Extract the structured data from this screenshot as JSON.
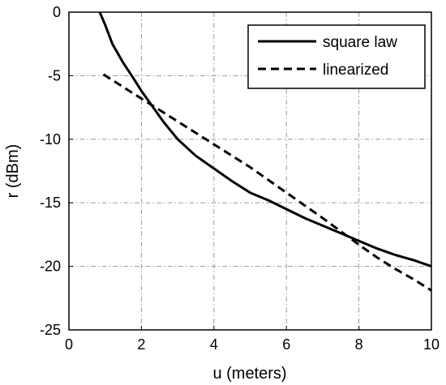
{
  "chart_data": {
    "type": "line",
    "xlabel": "u (meters)",
    "ylabel": "r (dBm)",
    "xlim": [
      0,
      10
    ],
    "ylim": [
      -25,
      0
    ],
    "xticks": [
      0,
      2,
      4,
      6,
      8,
      10
    ],
    "yticks": [
      0,
      -5,
      -10,
      -15,
      -20,
      -25
    ],
    "grid": true,
    "legend_position": "top-right",
    "series": [
      {
        "name": "square law",
        "style": "solid",
        "color": "#000000",
        "x": [
          0.85,
          1.0,
          1.2,
          1.5,
          1.8,
          2.0,
          2.3,
          2.6,
          3.0,
          3.5,
          4.0,
          4.5,
          5.0,
          5.5,
          6.0,
          6.5,
          7.0,
          7.5,
          8.0,
          8.5,
          9.0,
          9.5,
          10.0
        ],
        "values": [
          0.0,
          -1.0,
          -2.5,
          -4.0,
          -5.3,
          -6.2,
          -7.4,
          -8.6,
          -10.0,
          -11.3,
          -12.3,
          -13.3,
          -14.2,
          -14.8,
          -15.5,
          -16.2,
          -16.8,
          -17.4,
          -18.0,
          -18.6,
          -19.1,
          -19.5,
          -20.0
        ]
      },
      {
        "name": "linearized",
        "style": "dashed",
        "color": "#000000",
        "x": [
          0.95,
          1.5,
          2.0,
          3.0,
          4.0,
          5.0,
          6.0,
          7.0,
          8.0,
          8.5,
          9.0,
          9.5,
          10.0
        ],
        "values": [
          -4.9,
          -5.9,
          -6.8,
          -8.6,
          -10.4,
          -12.2,
          -14.2,
          -16.2,
          -18.3,
          -19.3,
          -20.2,
          -21.0,
          -21.9
        ]
      }
    ]
  }
}
